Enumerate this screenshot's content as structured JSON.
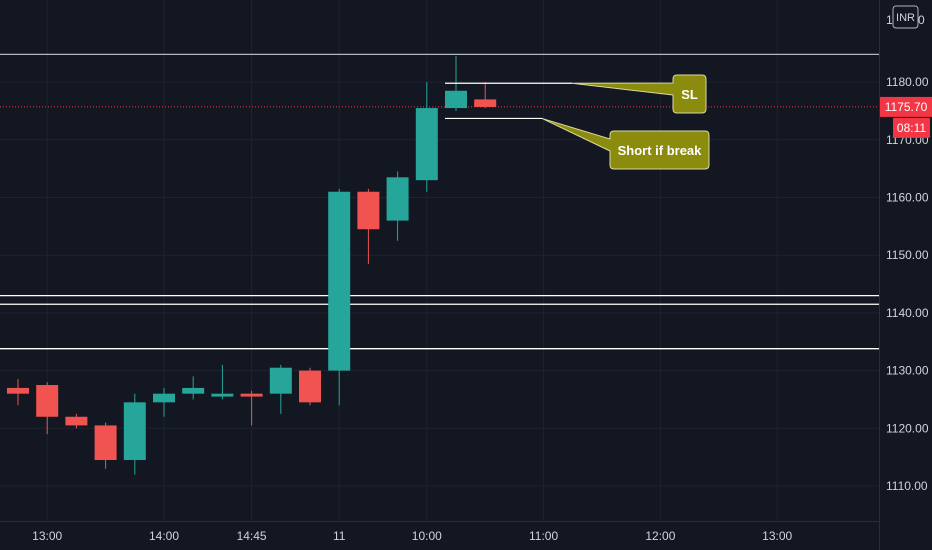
{
  "chart_data": {
    "type": "candlestick",
    "currency": "INR",
    "y_axis": {
      "ylim": [
        1102,
        1191
      ],
      "ticks": [
        1110,
        1120,
        1130,
        1140,
        1150,
        1160,
        1170,
        1180
      ],
      "tick_labels": [
        "1110.00",
        "1120.00",
        "1130.00",
        "1140.00",
        "1150.00",
        "1160.00",
        "1170.00",
        "1180.00"
      ],
      "top_partial_label": "1",
      "top_partial_label2": "0"
    },
    "x_axis": {
      "labels": [
        "13:00",
        "14:00",
        "14:45",
        "11",
        "10:00",
        "11:00",
        "12:00",
        "13:00"
      ],
      "label_index": [
        1,
        5,
        8,
        11,
        14,
        18,
        22,
        26
      ]
    },
    "last_price": {
      "label": "1175.70",
      "value": 1175.7,
      "countdown": "08:11",
      "color": "#f23645"
    },
    "candles": [
      {
        "o": 1127,
        "h": 1128.5,
        "l": 1124,
        "c": 1126
      },
      {
        "o": 1127.5,
        "h": 1128,
        "l": 1119,
        "c": 1122
      },
      {
        "o": 1122,
        "h": 1122.5,
        "l": 1120,
        "c": 1120.5
      },
      {
        "o": 1120.5,
        "h": 1121,
        "l": 1113,
        "c": 1114.5
      },
      {
        "o": 1114.5,
        "h": 1126,
        "l": 1112,
        "c": 1124.5
      },
      {
        "o": 1124.5,
        "h": 1127,
        "l": 1122,
        "c": 1126
      },
      {
        "o": 1126,
        "h": 1129,
        "l": 1125,
        "c": 1127
      },
      {
        "o": 1125.5,
        "h": 1131,
        "l": 1125,
        "c": 1126
      },
      {
        "o": 1126,
        "h": 1126.5,
        "l": 1120.5,
        "c": 1125.5
      },
      {
        "o": 1126,
        "h": 1131,
        "l": 1122.5,
        "c": 1130.5
      },
      {
        "o": 1130,
        "h": 1130.5,
        "l": 1124,
        "c": 1124.5
      },
      {
        "o": 1130,
        "h": 1161.5,
        "l": 1124,
        "c": 1161
      },
      {
        "o": 1161,
        "h": 1161.5,
        "l": 1148.5,
        "c": 1154.5
      },
      {
        "o": 1156,
        "h": 1164.5,
        "l": 1152.5,
        "c": 1163.5
      },
      {
        "o": 1163,
        "h": 1180,
        "l": 1161,
        "c": 1175.5
      },
      {
        "o": 1175.5,
        "h": 1184.5,
        "l": 1175,
        "c": 1178.5
      },
      {
        "o": 1177,
        "h": 1180,
        "l": 1175.5,
        "c": 1175.7
      }
    ],
    "horizontal_lines": [
      1184.8,
      1143,
      1141.5,
      1133.8
    ],
    "levels": [
      {
        "value": 1179.8,
        "label": "SL"
      },
      {
        "value": 1173.7,
        "label": "Short if break"
      }
    ],
    "colors": {
      "up": "#26a69a",
      "down": "#f05350",
      "background": "#131722",
      "grid": "#1f2330",
      "callout": "#8b8b0e"
    }
  }
}
